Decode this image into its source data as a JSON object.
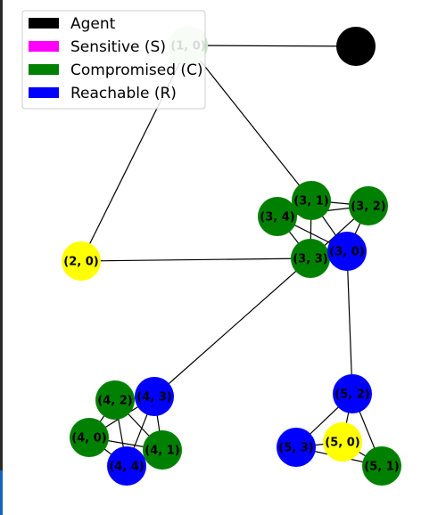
{
  "graph": {
    "type": "network-graph",
    "legend": [
      {
        "label": "Agent",
        "color": "#000000"
      },
      {
        "label": "Sensitive (S)",
        "color": "#ff00ff"
      },
      {
        "label": "Compromised (C)",
        "color": "#008000"
      },
      {
        "label": "Reachable (R)",
        "color": "#0000ff"
      }
    ],
    "nodes": [
      {
        "id": "agent",
        "label": "",
        "status": "agent",
        "color": "#000000"
      },
      {
        "id": "1-0",
        "label": "(1, 0)",
        "status": "compromised-faded",
        "color": "#c8e6c9",
        "label_color": "#d9d9d9"
      },
      {
        "id": "2-0",
        "label": "(2, 0)",
        "status": "unknown",
        "color": "#ffff00"
      },
      {
        "id": "3-1",
        "label": "(3, 1)",
        "status": "compromised",
        "color": "#008000"
      },
      {
        "id": "3-2",
        "label": "(3, 2)",
        "status": "compromised",
        "color": "#008000"
      },
      {
        "id": "3-4",
        "label": "(3, 4)",
        "status": "compromised",
        "color": "#008000"
      },
      {
        "id": "3-3",
        "label": "(3, 3)",
        "status": "compromised",
        "color": "#008000"
      },
      {
        "id": "3-0",
        "label": "(3, 0)",
        "status": "reachable",
        "color": "#0000ff"
      },
      {
        "id": "4-2",
        "label": "(4, 2)",
        "status": "compromised",
        "color": "#008000"
      },
      {
        "id": "4-3",
        "label": "(4, 3)",
        "status": "reachable",
        "color": "#0000ff"
      },
      {
        "id": "4-0",
        "label": "(4, 0)",
        "status": "compromised",
        "color": "#008000"
      },
      {
        "id": "4-1",
        "label": "(4, 1)",
        "status": "compromised",
        "color": "#008000"
      },
      {
        "id": "4-4",
        "label": "(4, 4)",
        "status": "reachable",
        "color": "#0000ff"
      },
      {
        "id": "5-2",
        "label": "(5, 2)",
        "status": "reachable",
        "color": "#0000ff"
      },
      {
        "id": "5-3",
        "label": "(5, 3)",
        "status": "reachable",
        "color": "#0000ff"
      },
      {
        "id": "5-0",
        "label": "(5, 0)",
        "status": "unknown",
        "color": "#ffff00"
      },
      {
        "id": "5-1",
        "label": "(5, 1)",
        "status": "compromised",
        "color": "#008000"
      }
    ],
    "edges": [
      [
        "agent",
        "1-0"
      ],
      [
        "1-0",
        "2-0"
      ],
      [
        "1-0",
        "3-1"
      ],
      [
        "2-0",
        "3-3"
      ],
      [
        "3-1",
        "3-2"
      ],
      [
        "3-1",
        "3-4"
      ],
      [
        "3-1",
        "3-3"
      ],
      [
        "3-1",
        "3-0"
      ],
      [
        "3-2",
        "3-4"
      ],
      [
        "3-2",
        "3-3"
      ],
      [
        "3-2",
        "3-0"
      ],
      [
        "3-4",
        "3-3"
      ],
      [
        "3-4",
        "3-0"
      ],
      [
        "3-3",
        "3-0"
      ],
      [
        "3-3",
        "4-3"
      ],
      [
        "3-0",
        "5-2"
      ],
      [
        "4-2",
        "4-3"
      ],
      [
        "4-2",
        "4-0"
      ],
      [
        "4-2",
        "4-1"
      ],
      [
        "4-2",
        "4-4"
      ],
      [
        "4-3",
        "4-0"
      ],
      [
        "4-3",
        "4-1"
      ],
      [
        "4-3",
        "4-4"
      ],
      [
        "4-0",
        "4-1"
      ],
      [
        "4-0",
        "4-4"
      ],
      [
        "4-1",
        "4-4"
      ],
      [
        "5-2",
        "5-3"
      ],
      [
        "5-2",
        "5-0"
      ],
      [
        "5-2",
        "5-1"
      ],
      [
        "5-3",
        "5-0"
      ],
      [
        "5-3",
        "5-1"
      ],
      [
        "5-0",
        "5-1"
      ]
    ]
  }
}
